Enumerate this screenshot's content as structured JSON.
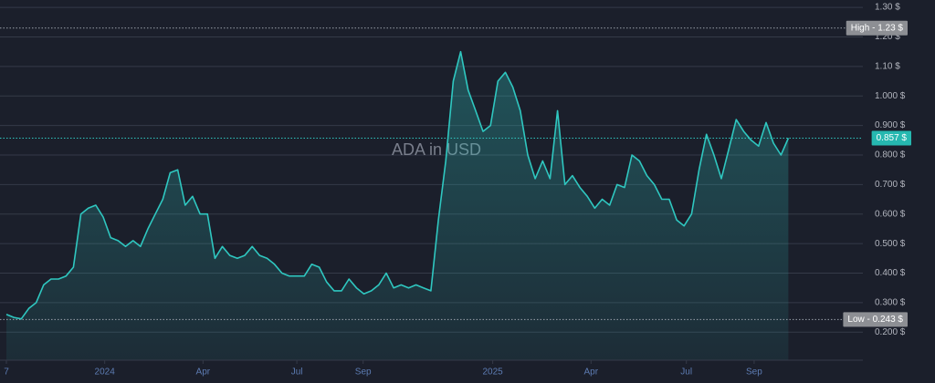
{
  "chart_data": {
    "type": "area",
    "title": "ADA in USD",
    "series": [
      {
        "name": "ADA",
        "color": "#2fc7c0",
        "values": [
          0.26,
          0.25,
          0.245,
          0.28,
          0.3,
          0.36,
          0.38,
          0.38,
          0.39,
          0.42,
          0.6,
          0.62,
          0.63,
          0.59,
          0.52,
          0.51,
          0.49,
          0.51,
          0.49,
          0.55,
          0.6,
          0.65,
          0.74,
          0.75,
          0.63,
          0.66,
          0.6,
          0.6,
          0.45,
          0.49,
          0.46,
          0.45,
          0.46,
          0.49,
          0.46,
          0.45,
          0.43,
          0.4,
          0.39,
          0.39,
          0.39,
          0.43,
          0.42,
          0.37,
          0.34,
          0.34,
          0.38,
          0.35,
          0.33,
          0.34,
          0.36,
          0.4,
          0.35,
          0.36,
          0.35,
          0.36,
          0.35,
          0.34,
          0.58,
          0.78,
          1.05,
          1.15,
          1.02,
          0.95,
          0.88,
          0.9,
          1.05,
          1.08,
          1.03,
          0.95,
          0.8,
          0.72,
          0.78,
          0.72,
          0.95,
          0.7,
          0.73,
          0.69,
          0.66,
          0.62,
          0.65,
          0.63,
          0.7,
          0.69,
          0.8,
          0.78,
          0.73,
          0.7,
          0.65,
          0.65,
          0.58,
          0.56,
          0.6,
          0.75,
          0.87,
          0.8,
          0.72,
          0.82,
          0.92,
          0.88,
          0.85,
          0.83,
          0.91,
          0.84,
          0.8,
          0.857
        ]
      }
    ],
    "xlim": [
      0,
      115
    ],
    "xticks": [
      {
        "value": 0,
        "label": "7"
      },
      {
        "value": 13.2,
        "label": "2024"
      },
      {
        "value": 26.4,
        "label": "Apr"
      },
      {
        "value": 39.0,
        "label": "Jul"
      },
      {
        "value": 47.9,
        "label": "Sep"
      },
      {
        "value": 65.3,
        "label": "2025"
      },
      {
        "value": 78.5,
        "label": "Apr"
      },
      {
        "value": 91.3,
        "label": "Jul"
      },
      {
        "value": 100.4,
        "label": "Sep"
      }
    ],
    "ylim": [
      0.105,
      1.325
    ],
    "yticks": [
      {
        "value": 0.2,
        "label": "0.200 $"
      },
      {
        "value": 0.3,
        "label": "0.300 $"
      },
      {
        "value": 0.4,
        "label": "0.400 $"
      },
      {
        "value": 0.5,
        "label": "0.500 $"
      },
      {
        "value": 0.6,
        "label": "0.600 $"
      },
      {
        "value": 0.7,
        "label": "0.700 $"
      },
      {
        "value": 0.8,
        "label": "0.800 $"
      },
      {
        "value": 0.9,
        "label": "0.900 $"
      },
      {
        "value": 1.0,
        "label": "1.000 $"
      },
      {
        "value": 1.1,
        "label": "1.10 $"
      },
      {
        "value": 1.2,
        "label": "1.20 $"
      },
      {
        "value": 1.3,
        "label": "1.30 $"
      }
    ],
    "grid": true,
    "high": {
      "value": 1.23,
      "label": "High - 1.23 $"
    },
    "low": {
      "value": 0.243,
      "label": "Low - 0.243 $"
    },
    "current": {
      "value": 0.857,
      "label": "0.857 $"
    }
  }
}
